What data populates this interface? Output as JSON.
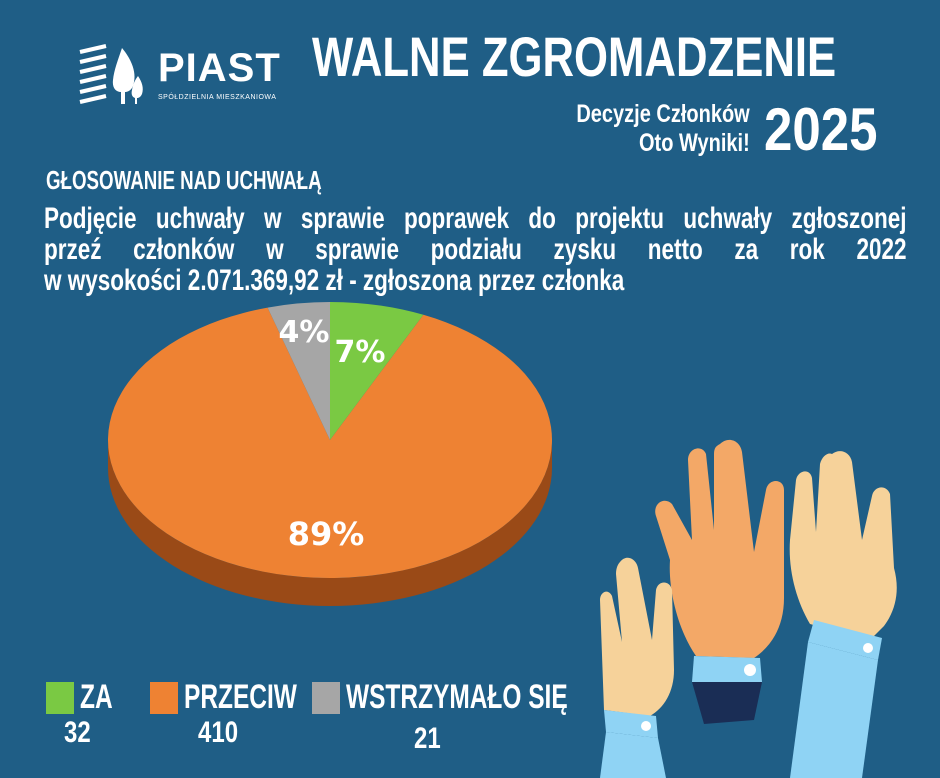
{
  "logo": {
    "name": "PIAST",
    "subtitle": "SPÓŁDZIELNIA MIESZKANIOWA"
  },
  "header": {
    "title": "WALNE ZGROMADZENIE",
    "subtitle_line1": "Decyzje Członków",
    "subtitle_line2": "Oto Wyniki!",
    "year": "2025"
  },
  "section_title": "GŁOSOWANIE NAD UCHWAŁĄ",
  "question_lines": [
    "Podjęcie uchwały w sprawie poprawek do projektu uchwały zgłoszonej",
    "przeź  członków  w  sprawie  podziału  zysku  netto  za  rok  2022",
    "w wysokości  2.071.369,92 zł - zgłoszona przez członka"
  ],
  "colors": {
    "background": "#1f5e86",
    "za": "#7ac943",
    "przeciw": "#ee8233",
    "przeciw_side": "#9a4a17",
    "wstrzymalo": "#a6a6a6"
  },
  "chart_data": {
    "type": "pie",
    "slices": [
      {
        "label": "ZA",
        "value": 32,
        "percent_label": "7%",
        "color": "#7ac943"
      },
      {
        "label": "PRZECIW",
        "value": 410,
        "percent_label": "89%",
        "color": "#ee8233"
      },
      {
        "label": "WSTRZYMAŁO SIĘ",
        "value": 21,
        "percent_label": "4%",
        "color": "#a6a6a6"
      }
    ]
  },
  "legend": [
    {
      "label": "ZA",
      "count": "32"
    },
    {
      "label": "PRZECIW",
      "count": "410"
    },
    {
      "label": "WSTRZYMAŁO SIĘ",
      "count": "21"
    }
  ],
  "illustration": {
    "icon": "raised-hands-icon"
  }
}
